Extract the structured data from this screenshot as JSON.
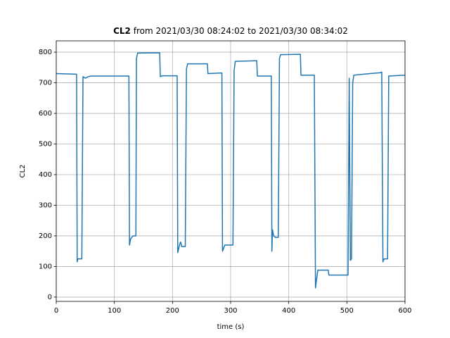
{
  "chart_data": {
    "type": "line",
    "title_bold": "CL2",
    "title": "from 2021/03/30 08:24:02 to 2021/03/30 08:34:02",
    "x_label": "time (s)",
    "y_label": "CL2",
    "x": [
      0,
      35,
      36,
      37,
      44,
      46,
      50,
      55,
      60,
      125,
      126,
      128,
      132,
      137,
      138,
      140,
      178,
      179,
      182,
      208,
      209,
      212,
      214,
      216,
      222,
      224,
      226,
      260,
      261,
      285,
      286,
      290,
      304,
      306,
      308,
      345,
      346,
      370,
      371,
      372,
      374,
      377,
      382,
      384,
      386,
      420,
      421,
      444,
      446,
      448,
      450,
      468,
      469,
      502,
      504,
      506,
      508,
      510,
      512,
      540,
      558,
      560,
      562,
      564,
      570,
      572,
      600
    ],
    "series": [
      {
        "name": "CL2",
        "color": "#1f77b4",
        "values": [
          730,
          728,
          115,
          125,
          125,
          720,
          715,
          720,
          722,
          722,
          170,
          190,
          200,
          200,
          780,
          797,
          798,
          720,
          723,
          723,
          145,
          170,
          180,
          165,
          165,
          745,
          762,
          762,
          730,
          732,
          150,
          170,
          170,
          740,
          770,
          772,
          722,
          722,
          150,
          220,
          200,
          195,
          195,
          780,
          792,
          793,
          725,
          725,
          30,
          60,
          88,
          88,
          72,
          72,
          715,
          120,
          125,
          700,
          725,
          730,
          733,
          735,
          115,
          125,
          125,
          722,
          725
        ]
      }
    ],
    "xlim": [
      0,
      600
    ],
    "ylim": [
      -14,
      837
    ],
    "xticks": [
      0,
      100,
      200,
      300,
      400,
      500,
      600
    ],
    "yticks": [
      0,
      100,
      200,
      300,
      400,
      500,
      600,
      700,
      800
    ],
    "grid": true
  }
}
